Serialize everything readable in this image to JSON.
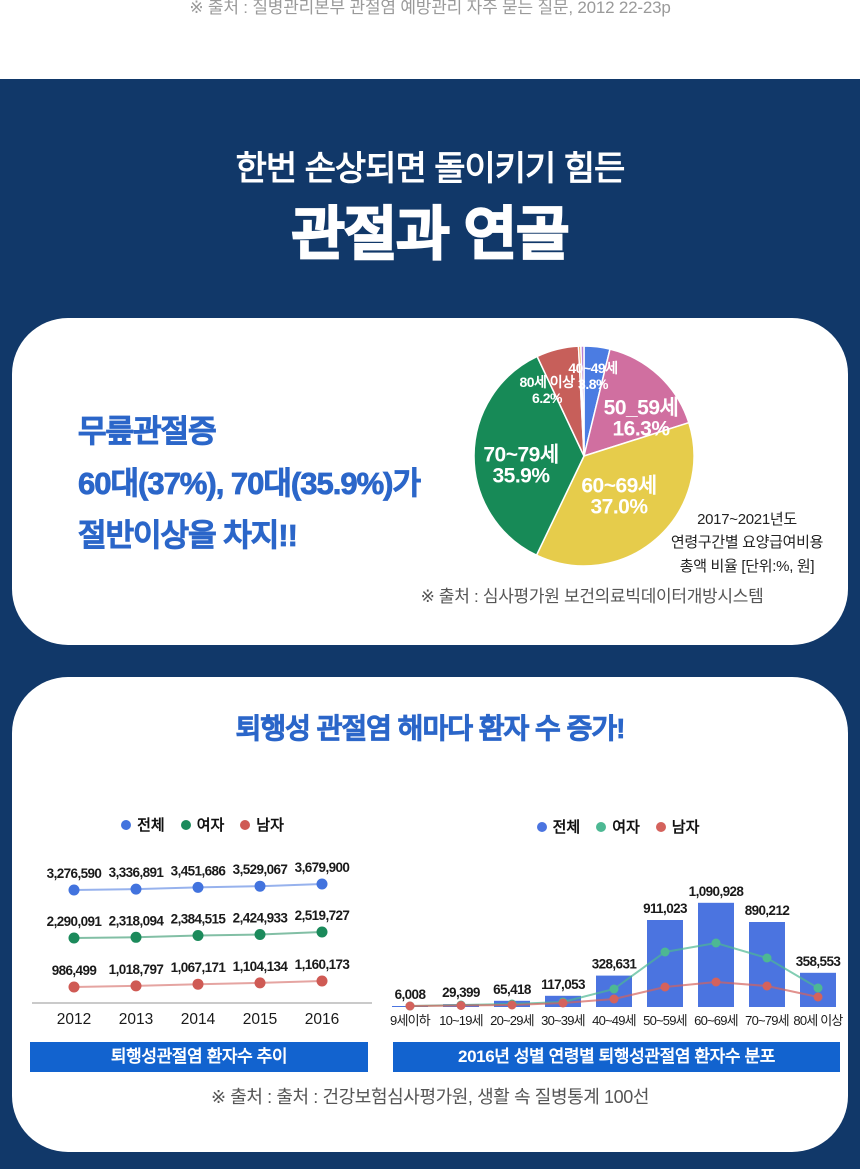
{
  "top": {
    "source": "※ 출처 : 질병관리본부 관절염 예방관리 자주 묻는 질문, 2012 22-23p"
  },
  "hero": {
    "subtitle": "한번 손상되면 돌이키기 힘든",
    "title": "관절과 연골"
  },
  "card1": {
    "headline_lines": [
      "무릎관절증",
      "60대(37%), 70대(35.9%)가",
      "절반이상을 차지!!"
    ],
    "caption_lines": [
      "2017~2021년도",
      "연령구간별 요양급여비용",
      "총액 비율 [단위:%, 원]"
    ],
    "source": "※ 출처 : 심사평가원 보건의료빅데이터개방시스템"
  },
  "card2": {
    "title": "퇴행성 관절염 해마다 환자 수 증가!",
    "banner_left": "퇴행성관절염 환자수 추이",
    "banner_right": "2016년 성별 연령별 퇴행성관절염 환자수 분포",
    "source": "※ 출처 : 출처 : 건강보험심사평가원, 생활 속 질병통계 100선"
  },
  "colors": {
    "navy_background": "#113869",
    "banner_blue": "#1263cf",
    "headline_blue": "#2b66c9",
    "white": "#ffffff"
  },
  "chart_data": [
    {
      "type": "pie",
      "note_lines": [
        "2017~2021년도",
        "연령구간별 요양급여비용",
        "총액 비율 [단위:%, 원]"
      ],
      "unit": "%",
      "slices": [
        {
          "label": "40~49세",
          "value": 3.8,
          "color": "#4b7ce2"
        },
        {
          "label": "50_59세",
          "value": 16.3,
          "color": "#d06fa0"
        },
        {
          "label": "60~69세",
          "value": 37.0,
          "color": "#e6cc4b"
        },
        {
          "label": "70~79세",
          "value": 35.9,
          "color": "#178a57"
        },
        {
          "label": "80세 이상",
          "value": 6.2,
          "color": "#c75f5a"
        },
        {
          "label": "",
          "value": 0.35,
          "color": "#e88f3d",
          "estimated": true
        },
        {
          "label": "",
          "value": 0.45,
          "color": "#b67fd3",
          "estimated": true
        }
      ]
    },
    {
      "type": "line",
      "title": "퇴행성관절염 환자수 추이",
      "categories": [
        "2012",
        "2013",
        "2014",
        "2015",
        "2016"
      ],
      "legend_position": "top",
      "grid": false,
      "series": [
        {
          "name": "전체",
          "color": "#4273de",
          "values": [
            3276590,
            3336891,
            3451686,
            3529067,
            3679900
          ]
        },
        {
          "name": "여자",
          "color": "#1b8a5b",
          "values": [
            2290091,
            2318094,
            2384515,
            2424933,
            2519727
          ]
        },
        {
          "name": "남자",
          "color": "#cf5a54",
          "values": [
            986499,
            1018797,
            1067171,
            1104134,
            1160173
          ]
        }
      ]
    },
    {
      "type": "bar",
      "title": "2016년 성별 연령별 퇴행성관절염 환자수 분포",
      "categories": [
        "9세이하",
        "10~19세",
        "20~29세",
        "30~39세",
        "40~49세",
        "50~59세",
        "60~69세",
        "70~79세",
        "80세 이상"
      ],
      "legend_position": "top",
      "grid": false,
      "ylim": [
        0,
        1200000
      ],
      "series": [
        {
          "name": "전체",
          "mark": "bar",
          "color": "#4b74e0",
          "labels_shown": true,
          "values": [
            6008,
            29399,
            65418,
            117053,
            328631,
            911023,
            1090928,
            890212,
            358553
          ]
        },
        {
          "name": "여자",
          "mark": "line",
          "color": "#4db893",
          "values_estimated": true,
          "values": [
            5000,
            21000,
            31000,
            52000,
            188000,
            576000,
            670000,
            513000,
            199000
          ]
        },
        {
          "name": "남자",
          "mark": "line",
          "color": "#d4625c",
          "values_estimated": true,
          "values": [
            5000,
            16000,
            21000,
            42000,
            84000,
            209000,
            262000,
            220000,
            105000
          ]
        }
      ]
    }
  ]
}
